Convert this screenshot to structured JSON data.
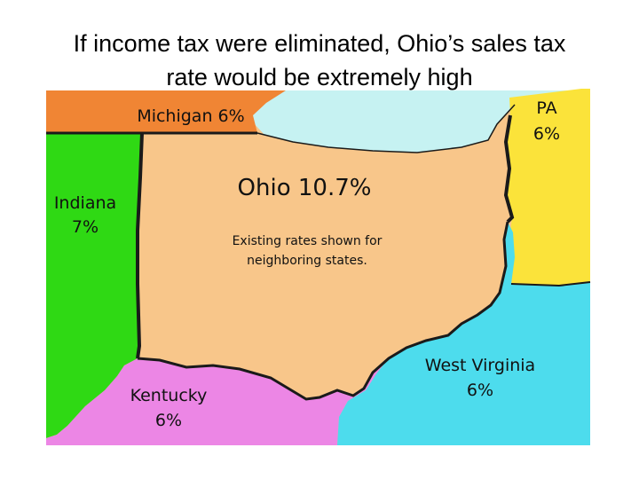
{
  "title": {
    "line1": "If income tax were eliminated, Ohio’s sales tax",
    "line2": "rate would be extremely high"
  },
  "regions": {
    "michigan": {
      "label": "Michigan 6%",
      "color": "#f08534"
    },
    "pennsylvania": {
      "label_line1": "PA",
      "label_line2": "6%",
      "color": "#fbe33a"
    },
    "indiana": {
      "label_line1": "Indiana",
      "label_line2": "7%",
      "color": "#2fd914"
    },
    "ohio": {
      "label": "Ohio 10.7%",
      "color": "#f8c68a",
      "label_color": "#e01a1a"
    },
    "kentucky": {
      "label_line1": "Kentucky",
      "label_line2": "6%",
      "color": "#ec86e5"
    },
    "west_virginia": {
      "label_line1": "West Virginia",
      "label_line2": "6%",
      "color": "#4ddced"
    },
    "lake_erie": {
      "color": "#c6f2f2"
    }
  },
  "note": {
    "line1": "Existing rates shown for",
    "line2": "neighboring states."
  }
}
